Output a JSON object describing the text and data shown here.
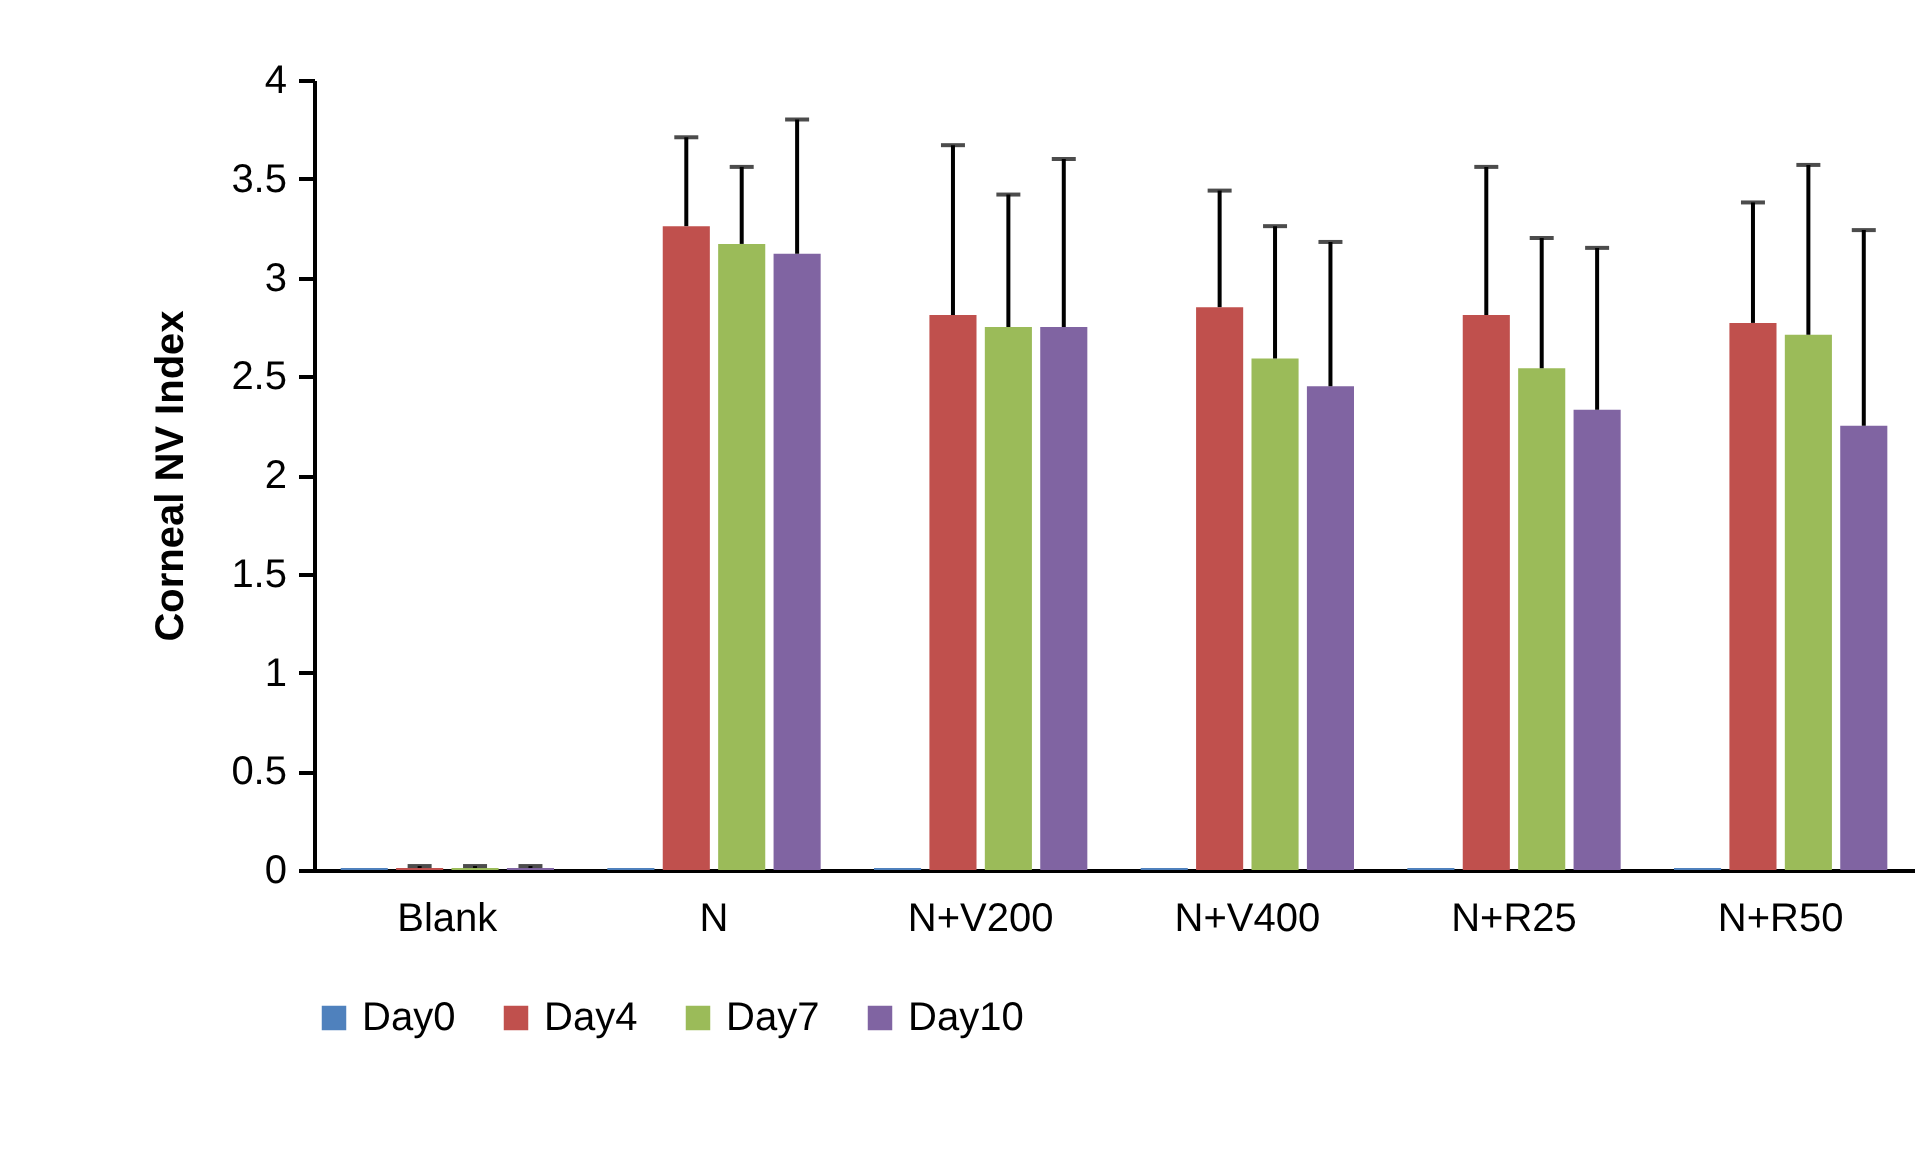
{
  "chart_data": {
    "type": "bar",
    "ylabel": "Corneal NV Index",
    "categories": [
      "Blank",
      "N",
      "N+V200",
      "N+V400",
      "N+R25",
      "N+R50"
    ],
    "series": [
      {
        "name": "Day0",
        "color": "#4f81bd",
        "values": [
          0.01,
          0.01,
          0.01,
          0.01,
          0.01,
          0.01
        ]
      },
      {
        "name": "Day4",
        "color": "#c0504d",
        "values": [
          0.01,
          3.26,
          2.81,
          2.85,
          2.81,
          2.77
        ],
        "errors": [
          [
            0.01,
            0.02
          ],
          [
            3.26,
            3.71
          ],
          [
            2.81,
            3.67
          ],
          [
            2.85,
            3.44
          ],
          [
            2.81,
            3.56
          ],
          [
            2.77,
            3.38
          ]
        ]
      },
      {
        "name": "Day7",
        "color": "#9bbb59",
        "values": [
          0.01,
          3.17,
          2.75,
          2.59,
          2.54,
          2.71
        ],
        "errors": [
          [
            0.01,
            0.02
          ],
          [
            3.17,
            3.56
          ],
          [
            2.75,
            3.42
          ],
          [
            2.59,
            3.26
          ],
          [
            2.54,
            3.2
          ],
          [
            2.71,
            3.57
          ]
        ]
      },
      {
        "name": "Day10",
        "color": "#8064a2",
        "values": [
          0.01,
          3.12,
          2.75,
          2.45,
          2.33,
          2.25
        ],
        "errors": [
          [
            0.01,
            0.02
          ],
          [
            3.12,
            3.8
          ],
          [
            2.75,
            3.6
          ],
          [
            2.45,
            3.18
          ],
          [
            2.33,
            3.15
          ],
          [
            2.25,
            3.24
          ]
        ]
      }
    ],
    "ylim": [
      0,
      4
    ],
    "yticks": [
      0,
      0.5,
      1,
      1.5,
      2,
      2.5,
      3,
      3.5,
      4
    ],
    "grid": false,
    "legend": "bottom"
  }
}
